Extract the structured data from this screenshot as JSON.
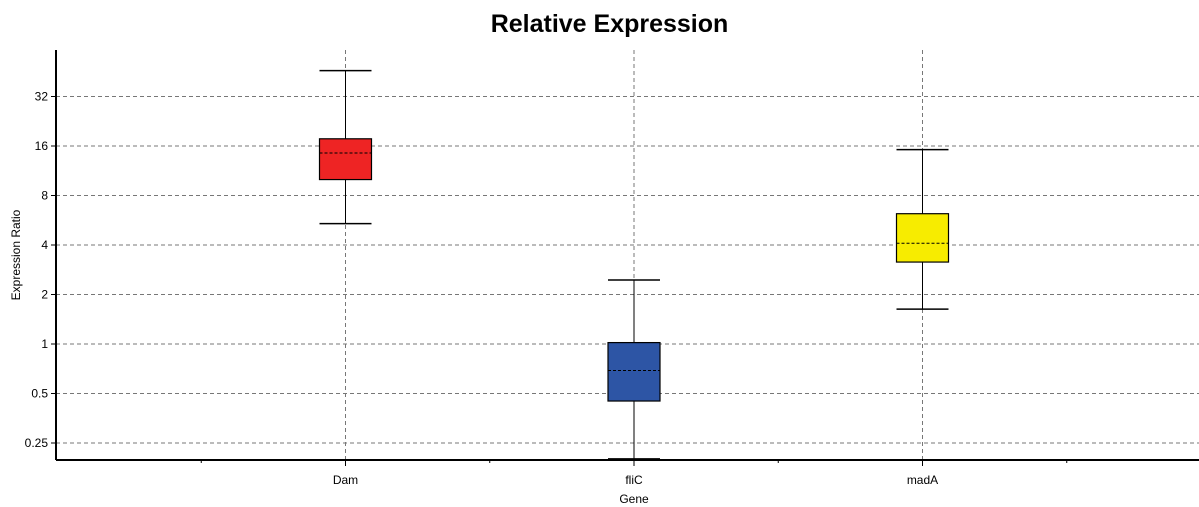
{
  "chart_data": {
    "type": "box",
    "title": "Relative Expression",
    "xlabel": "Gene",
    "ylabel": "Expression Ratio",
    "y_scale": "log2",
    "ylim": [
      0.2,
      54
    ],
    "y_ticks": [
      0.25,
      0.5,
      1,
      2,
      4,
      8,
      16,
      32
    ],
    "y_tick_labels": [
      "0.25",
      "0.5",
      "1",
      "2",
      "4",
      "8",
      "16",
      "32"
    ],
    "categories": [
      "Dam",
      "fliC",
      "madA"
    ],
    "grid": true,
    "boxes": [
      {
        "name": "Dam",
        "color": "#ee2424",
        "whisker_low": 5.4,
        "q1": 10.0,
        "median": 14.5,
        "q3": 17.7,
        "whisker_high": 46
      },
      {
        "name": "fliC",
        "color": "#2d55a5",
        "whisker_low": 0.2,
        "q1": 0.45,
        "median": 0.69,
        "q3": 1.02,
        "whisker_high": 2.45
      },
      {
        "name": "madA",
        "color": "#f7ec00",
        "whisker_low": 1.63,
        "q1": 3.15,
        "median": 4.1,
        "q3": 6.2,
        "whisker_high": 15.2
      }
    ]
  }
}
